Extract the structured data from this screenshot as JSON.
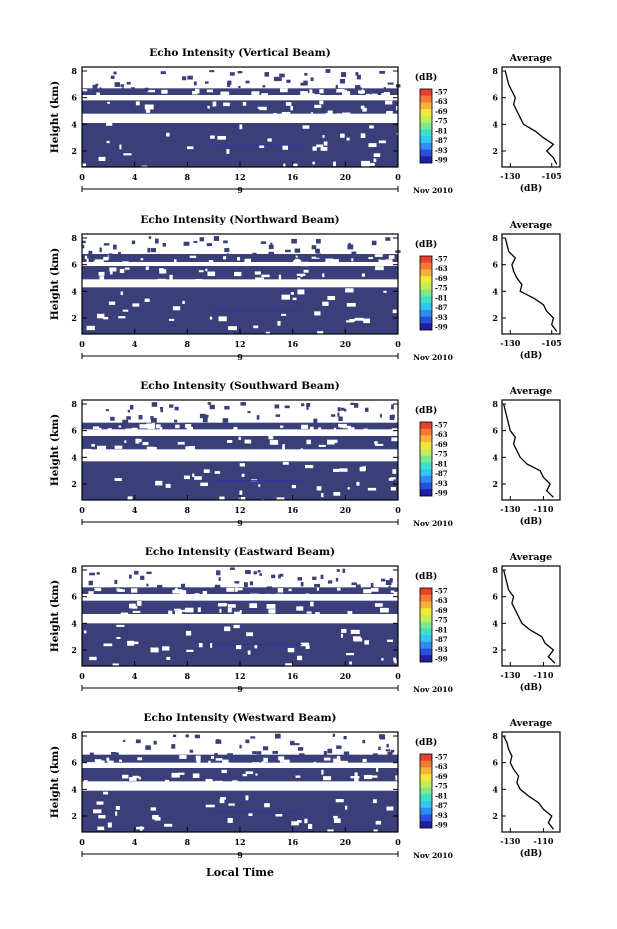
{
  "figure": {
    "xlabel": "Local Time",
    "colors": {
      "echo": "#3a3f7a",
      "scale": [
        "#2020a0",
        "#2850d8",
        "#2f8cf0",
        "#33c6f2",
        "#3ee0c8",
        "#7ee890",
        "#c4ee54",
        "#f3e83a",
        "#f6b13c",
        "#f27a37",
        "#e8402e"
      ]
    }
  },
  "chart_data": [
    {
      "type": "heatmap",
      "title": "Echo Intensity (Vertical Beam)",
      "ylabel": "Height (km)",
      "x_ticks": [
        "0",
        "4",
        "8",
        "12",
        "16",
        "20",
        "0"
      ],
      "date_label": "9",
      "month_label": "Nov 2010",
      "y_ticks": [
        "2",
        "4",
        "6",
        "8"
      ],
      "ylim": [
        0.8,
        8.3
      ],
      "colorbar": {
        "unit": "(dB)",
        "ticks": [
          "-57",
          "-63",
          "-69",
          "-75",
          "-81",
          "-87",
          "-93",
          "-99"
        ]
      },
      "average": {
        "title": "Average",
        "xlabel": "(dB)",
        "x_ticks": [
          "-130",
          "-105"
        ],
        "xlim": [
          -135,
          -100
        ],
        "y_ticks": [
          "2",
          "4",
          "6",
          "8"
        ],
        "ylim": [
          0.8,
          8.3
        ],
        "profile": [
          [
            -102,
            1.0
          ],
          [
            -104,
            1.5
          ],
          [
            -108,
            2.0
          ],
          [
            -104,
            2.5
          ],
          [
            -110,
            3.0
          ],
          [
            -115,
            3.5
          ],
          [
            -122,
            4.0
          ],
          [
            -124,
            4.5
          ],
          [
            -126,
            5.0
          ],
          [
            -128,
            5.5
          ],
          [
            -127,
            6.0
          ],
          [
            -129,
            6.5
          ],
          [
            -131,
            7.0
          ],
          [
            -132,
            7.5
          ],
          [
            -133,
            8.0
          ]
        ]
      },
      "bands": [
        [
          0.8,
          4.1
        ],
        [
          4.8,
          5.8
        ],
        [
          6.2,
          6.7
        ]
      ]
    },
    {
      "type": "heatmap",
      "title": "Echo Intensity (Northward Beam)",
      "ylabel": "Height (km)",
      "x_ticks": [
        "0",
        "4",
        "8",
        "12",
        "16",
        "20",
        "0"
      ],
      "date_label": "9",
      "month_label": "Nov 2010",
      "y_ticks": [
        "2",
        "4",
        "6",
        "8"
      ],
      "ylim": [
        0.8,
        8.3
      ],
      "colorbar": {
        "unit": "(dB)",
        "ticks": [
          "-57",
          "-63",
          "-69",
          "-75",
          "-81",
          "-87",
          "-93",
          "-99"
        ]
      },
      "average": {
        "title": "Average",
        "xlabel": "(dB)",
        "x_ticks": [
          "-130",
          "-105"
        ],
        "xlim": [
          -135,
          -100
        ],
        "y_ticks": [
          "2",
          "4",
          "6",
          "8"
        ],
        "ylim": [
          0.8,
          8.3
        ],
        "profile": [
          [
            -102,
            1.0
          ],
          [
            -105,
            1.5
          ],
          [
            -104,
            2.0
          ],
          [
            -108,
            2.5
          ],
          [
            -110,
            3.0
          ],
          [
            -116,
            3.5
          ],
          [
            -124,
            4.0
          ],
          [
            -123,
            4.5
          ],
          [
            -126,
            5.0
          ],
          [
            -128,
            5.5
          ],
          [
            -129,
            6.0
          ],
          [
            -127,
            6.5
          ],
          [
            -131,
            7.0
          ],
          [
            -132,
            7.5
          ],
          [
            -133,
            8.0
          ]
        ]
      },
      "bands": [
        [
          0.8,
          4.3
        ],
        [
          4.9,
          5.9
        ],
        [
          6.2,
          6.8
        ]
      ]
    },
    {
      "type": "heatmap",
      "title": "Echo Intensity (Southward Beam)",
      "ylabel": "Height (km)",
      "x_ticks": [
        "0",
        "4",
        "8",
        "12",
        "16",
        "20",
        "0"
      ],
      "date_label": "9",
      "month_label": "Nov 2010",
      "y_ticks": [
        "2",
        "4",
        "6",
        "8"
      ],
      "ylim": [
        0.8,
        8.3
      ],
      "colorbar": {
        "unit": "(dB)",
        "ticks": [
          "-57",
          "-63",
          "-69",
          "-75",
          "-81",
          "-87",
          "-93",
          "-99"
        ]
      },
      "average": {
        "title": "Average",
        "xlabel": "(dB)",
        "x_ticks": [
          "-130",
          "-110"
        ],
        "xlim": [
          -135,
          -100
        ],
        "y_ticks": [
          "2",
          "4",
          "6",
          "8"
        ],
        "ylim": [
          0.8,
          8.3
        ],
        "profile": [
          [
            -104,
            1.0
          ],
          [
            -108,
            1.5
          ],
          [
            -106,
            2.0
          ],
          [
            -110,
            2.5
          ],
          [
            -112,
            3.0
          ],
          [
            -120,
            3.5
          ],
          [
            -124,
            4.0
          ],
          [
            -126,
            4.5
          ],
          [
            -128,
            5.0
          ],
          [
            -127,
            5.5
          ],
          [
            -130,
            6.0
          ],
          [
            -131,
            6.5
          ],
          [
            -132,
            7.0
          ],
          [
            -133,
            7.5
          ],
          [
            -134,
            8.0
          ]
        ]
      },
      "bands": [
        [
          0.8,
          3.7
        ],
        [
          4.6,
          5.6
        ],
        [
          6.1,
          6.6
        ]
      ]
    },
    {
      "type": "heatmap",
      "title": "Echo Intensity (Eastward Beam)",
      "ylabel": "Height (km)",
      "x_ticks": [
        "0",
        "4",
        "8",
        "12",
        "16",
        "20",
        "0"
      ],
      "date_label": "9",
      "month_label": "Nov 2010",
      "y_ticks": [
        "2",
        "4",
        "6",
        "8"
      ],
      "ylim": [
        0.8,
        8.3
      ],
      "colorbar": {
        "unit": "(dB)",
        "ticks": [
          "-57",
          "-63",
          "-69",
          "-75",
          "-81",
          "-87",
          "-93",
          "-99"
        ]
      },
      "average": {
        "title": "Average",
        "xlabel": "(dB)",
        "x_ticks": [
          "-130",
          "-110"
        ],
        "xlim": [
          -135,
          -100
        ],
        "y_ticks": [
          "2",
          "4",
          "6",
          "8"
        ],
        "ylim": [
          0.8,
          8.3
        ],
        "profile": [
          [
            -103,
            1.0
          ],
          [
            -107,
            1.5
          ],
          [
            -104,
            2.0
          ],
          [
            -109,
            2.5
          ],
          [
            -111,
            3.0
          ],
          [
            -118,
            3.5
          ],
          [
            -123,
            4.0
          ],
          [
            -125,
            4.5
          ],
          [
            -127,
            5.0
          ],
          [
            -129,
            5.5
          ],
          [
            -128,
            6.0
          ],
          [
            -131,
            6.5
          ],
          [
            -132,
            7.0
          ],
          [
            -133,
            7.5
          ],
          [
            -134,
            8.0
          ]
        ]
      },
      "bands": [
        [
          0.8,
          4.0
        ],
        [
          4.7,
          5.7
        ],
        [
          6.2,
          6.7
        ]
      ]
    },
    {
      "type": "heatmap",
      "title": "Echo Intensity (Westward Beam)",
      "ylabel": "Height (km)",
      "x_ticks": [
        "0",
        "4",
        "8",
        "12",
        "16",
        "20",
        "0"
      ],
      "date_label": "9",
      "month_label": "Nov 2010",
      "y_ticks": [
        "2",
        "4",
        "6",
        "8"
      ],
      "ylim": [
        0.8,
        8.3
      ],
      "colorbar": {
        "unit": "(dB)",
        "ticks": [
          "-57",
          "-63",
          "-69",
          "-75",
          "-81",
          "-87",
          "-93",
          "-99"
        ]
      },
      "average": {
        "title": "Average",
        "xlabel": "(dB)",
        "x_ticks": [
          "-130",
          "-110"
        ],
        "xlim": [
          -135,
          -100
        ],
        "y_ticks": [
          "2",
          "4",
          "6",
          "8"
        ],
        "ylim": [
          0.8,
          8.3
        ],
        "profile": [
          [
            -104,
            1.0
          ],
          [
            -107,
            1.5
          ],
          [
            -105,
            2.0
          ],
          [
            -110,
            2.5
          ],
          [
            -113,
            3.0
          ],
          [
            -119,
            3.5
          ],
          [
            -124,
            4.0
          ],
          [
            -126,
            4.5
          ],
          [
            -125,
            5.0
          ],
          [
            -128,
            5.5
          ],
          [
            -130,
            6.0
          ],
          [
            -129,
            6.5
          ],
          [
            -131,
            7.0
          ],
          [
            -132,
            7.5
          ],
          [
            -134,
            8.0
          ]
        ]
      },
      "bands": [
        [
          0.8,
          3.9
        ],
        [
          4.6,
          5.6
        ],
        [
          6.0,
          6.6
        ]
      ]
    }
  ]
}
